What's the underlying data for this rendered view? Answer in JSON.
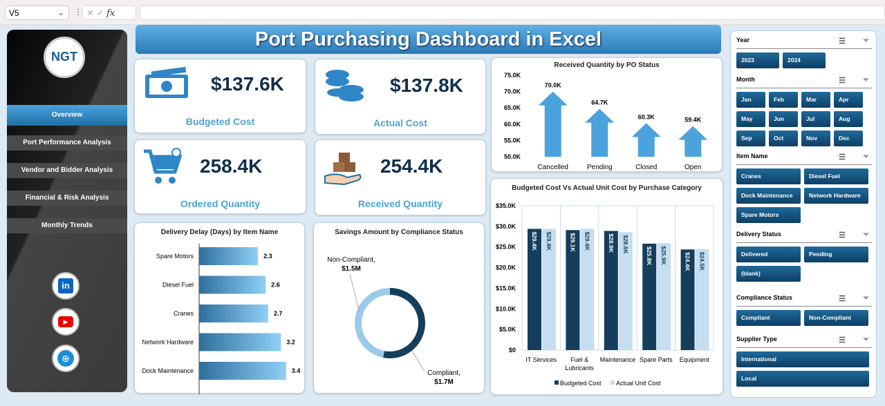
{
  "formula_bar": {
    "cell_ref": "V5",
    "fx": "fx"
  },
  "sidebar": {
    "logo": "NGT",
    "items": [
      {
        "label": "Overview"
      },
      {
        "label": "Port Performance Analysis"
      },
      {
        "label": "Vendor and Bidder Analysis"
      },
      {
        "label": "Financial & Risk Analysis"
      },
      {
        "label": "Monthly Trends"
      }
    ],
    "social": [
      "linkedin-icon",
      "youtube-icon",
      "web-icon"
    ]
  },
  "header": {
    "title": "Port Purchasing Dashboard in Excel"
  },
  "kpis": [
    {
      "value": "$137.6K",
      "label": "Budgeted  Cost",
      "icon": "money-icon"
    },
    {
      "value": "$137.8K",
      "label": "Actual  Cost",
      "icon": "coins-icon"
    },
    {
      "value": "258.4K",
      "label": "Ordered Quantity",
      "icon": "cart-icon"
    },
    {
      "value": "254.4K",
      "label": "Received Quantity",
      "icon": "box-hand-icon"
    }
  ],
  "colors": {
    "accent": "#4ba3d6",
    "dark": "#0f3f5f",
    "light": "#c5def0"
  },
  "chart_data": [
    {
      "type": "bar",
      "title": "Received Quantity by PO Status",
      "categories": [
        "Cancelled",
        "Pending",
        "Closed",
        "Open"
      ],
      "values": [
        70.0,
        64.7,
        60.3,
        59.4
      ],
      "labels": [
        "70.0K",
        "64.7K",
        "60.3K",
        "59.4K"
      ],
      "ylim": [
        50,
        75
      ],
      "yticks": [
        "50.0K",
        "55.0K",
        "60.0K",
        "65.0K",
        "70.0K",
        "75.0K"
      ]
    },
    {
      "type": "bar",
      "orientation": "horizontal",
      "title": "Delivery Delay (Days) by Item Name",
      "categories": [
        "Spare Motors",
        "Diesel Fuel",
        "Cranes",
        "Network Hardware",
        "Dock Maintenance"
      ],
      "values": [
        2.3,
        2.6,
        2.7,
        3.2,
        3.4
      ]
    },
    {
      "type": "pie",
      "title": "Savings Amount by Compliance Status",
      "slices": [
        {
          "name": "Non-Compliant",
          "value": 1.5,
          "label": "$1.5M"
        },
        {
          "name": "Compliant",
          "value": 1.7,
          "label": "$1.7M"
        }
      ]
    },
    {
      "type": "bar",
      "title": "Budgeted  Cost Vs Actual Unit Cost by Purchase Category",
      "categories": [
        "IT Services",
        "Fuel & Lubricants",
        "Maintenance",
        "Spare Parts",
        "Equipment"
      ],
      "series": [
        {
          "name": "Budgeted Cost",
          "values": [
            29.4,
            29.1,
            28.9,
            25.8,
            24.4
          ],
          "labels": [
            "$29.4K",
            "$29.1K",
            "$28.9K",
            "$25.8K",
            "$24.4K"
          ]
        },
        {
          "name": "Actual Unit Cost",
          "values": [
            29.4,
            29.4,
            28.6,
            25.9,
            24.5
          ],
          "labels": [
            "$29.4K",
            "$29.4K",
            "$28.6K",
            "$25.9K",
            "$24.5K"
          ]
        }
      ],
      "ylim": [
        0,
        35
      ],
      "yticks": [
        "$0",
        "$5.0K",
        "$10.0K",
        "$15.0K",
        "$20.0K",
        "$25.0K",
        "$30.0K",
        "$35.0K"
      ],
      "grid": true,
      "legend": "bottom"
    }
  ],
  "slicers": [
    {
      "title": "Year",
      "items": [
        "2023",
        "2024"
      ]
    },
    {
      "title": "Month",
      "items": [
        "Jan",
        "Feb",
        "Mar",
        "Apr",
        "May",
        "Jun",
        "Jul",
        "Aug",
        "Sep",
        "Oct",
        "Nov",
        "Dec"
      ]
    },
    {
      "title": "Item Name",
      "items": [
        "Cranes",
        "Diesel Fuel",
        "Dock Maintenance",
        "Network Hardware",
        "Spare Motors"
      ]
    },
    {
      "title": "Delivery Status",
      "items": [
        "Delivered",
        "Pending",
        "(blank)"
      ]
    },
    {
      "title": "Compliance Status",
      "items": [
        "Compliant",
        "Non-Compliant"
      ]
    },
    {
      "title": "Supplier Type",
      "items": [
        "International",
        "Local"
      ]
    }
  ]
}
